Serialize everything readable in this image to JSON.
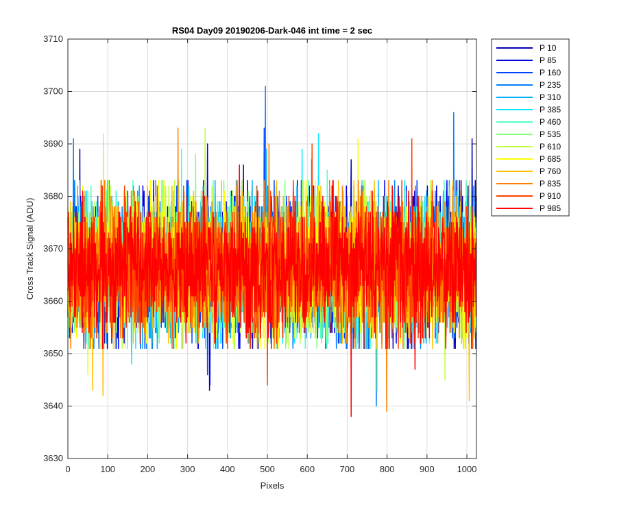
{
  "chart_data": {
    "type": "line",
    "title": "RS04 Day09 20190206-Dark-046 int time = 2 sec",
    "xlabel": "Pixels",
    "ylabel": "Cross Track Signal (ADU)",
    "xlim": [
      0,
      1024
    ],
    "ylim": [
      3630,
      3710
    ],
    "xticks": [
      0,
      100,
      200,
      300,
      400,
      500,
      600,
      700,
      800,
      900,
      1000
    ],
    "yticks": [
      3630,
      3640,
      3650,
      3660,
      3670,
      3680,
      3690,
      3700,
      3710
    ],
    "grid": true,
    "legend_position": "outside-top-right",
    "noise_profile": {
      "mean": 3666.5,
      "std": 6.3,
      "n_points": 1024
    },
    "series": [
      {
        "name": "P 10",
        "color": "#0000b3",
        "extremes": [
          [
            30,
            3689
          ],
          [
            355,
            3643
          ],
          [
            440,
            3686
          ],
          [
            710,
            3687
          ],
          [
            1013,
            3691
          ]
        ]
      },
      {
        "name": "P 85",
        "color": "#0000e0",
        "extremes": [
          [
            350,
            3690
          ],
          [
            356,
            3644
          ],
          [
            495,
            3686
          ]
        ]
      },
      {
        "name": "P 160",
        "color": "#0040ff",
        "extremes": [
          [
            492,
            3693
          ],
          [
            350,
            3646
          ]
        ]
      },
      {
        "name": "P 235",
        "color": "#0080ff",
        "extremes": [
          [
            495,
            3701
          ],
          [
            967,
            3696
          ],
          [
            773,
            3640
          ],
          [
            14,
            3691
          ]
        ]
      },
      {
        "name": "P 310",
        "color": "#00b0ff",
        "extremes": [
          [
            497,
            3689
          ],
          [
            611,
            3687
          ]
        ]
      },
      {
        "name": "P 385",
        "color": "#10e8ff",
        "extremes": [
          [
            587,
            3689
          ],
          [
            628,
            3692
          ],
          [
            160,
            3648
          ]
        ]
      },
      {
        "name": "P 460",
        "color": "#50ffc8",
        "extremes": [
          [
            285,
            3689
          ],
          [
            650,
            3685
          ]
        ]
      },
      {
        "name": "P 535",
        "color": "#80ff80",
        "extremes": [
          [
            775,
            3643
          ],
          [
            320,
            3688
          ]
        ]
      },
      {
        "name": "P 610",
        "color": "#c0ff40",
        "extremes": [
          [
            89,
            3692
          ],
          [
            344,
            3693
          ],
          [
            945,
            3645
          ]
        ]
      },
      {
        "name": "P 685",
        "color": "#ffff00",
        "extremes": [
          [
            727,
            3691
          ],
          [
            50,
            3646
          ]
        ]
      },
      {
        "name": "P 760",
        "color": "#ffc000",
        "extremes": [
          [
            88,
            3642
          ],
          [
            62,
            3643
          ],
          [
            1006,
            3641
          ]
        ]
      },
      {
        "name": "P 835",
        "color": "#ff8000",
        "extremes": [
          [
            799,
            3639
          ],
          [
            276,
            3693
          ],
          [
            504,
            3690
          ]
        ]
      },
      {
        "name": "P 910",
        "color": "#ff4000",
        "extremes": [
          [
            612,
            3690
          ],
          [
            862,
            3691
          ],
          [
            500,
            3644
          ]
        ]
      },
      {
        "name": "P 985",
        "color": "#ff0000",
        "extremes": [
          [
            710,
            3638
          ],
          [
            430,
            3686
          ],
          [
            870,
            3647
          ]
        ]
      }
    ]
  }
}
